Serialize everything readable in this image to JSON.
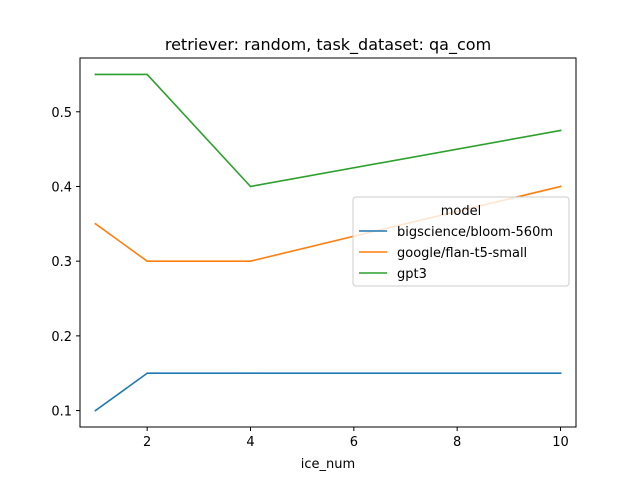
{
  "chart_data": {
    "type": "line",
    "title": "retriever: random, task_dataset: qa_com",
    "xlabel": "ice_num",
    "ylabel": "",
    "x": [
      1,
      2,
      4,
      10
    ],
    "xlim": [
      0.7,
      10.3
    ],
    "ylim": [
      0.078,
      0.572
    ],
    "xticks": [
      2,
      4,
      6,
      8,
      10
    ],
    "yticks": [
      0.1,
      0.2,
      0.3,
      0.4,
      0.5
    ],
    "grid": false,
    "legend": {
      "title": "model",
      "placement": "center-right"
    },
    "series": [
      {
        "name": "bigscience/bloom-560m",
        "color": "#1f77b4",
        "values": [
          0.1,
          0.15,
          0.15,
          0.15
        ]
      },
      {
        "name": "google/flan-t5-small",
        "color": "#ff7f0e",
        "values": [
          0.35,
          0.3,
          0.3,
          0.4
        ]
      },
      {
        "name": "gpt3",
        "color": "#2ca02c",
        "values": [
          0.55,
          0.55,
          0.4,
          0.475
        ]
      }
    ]
  }
}
